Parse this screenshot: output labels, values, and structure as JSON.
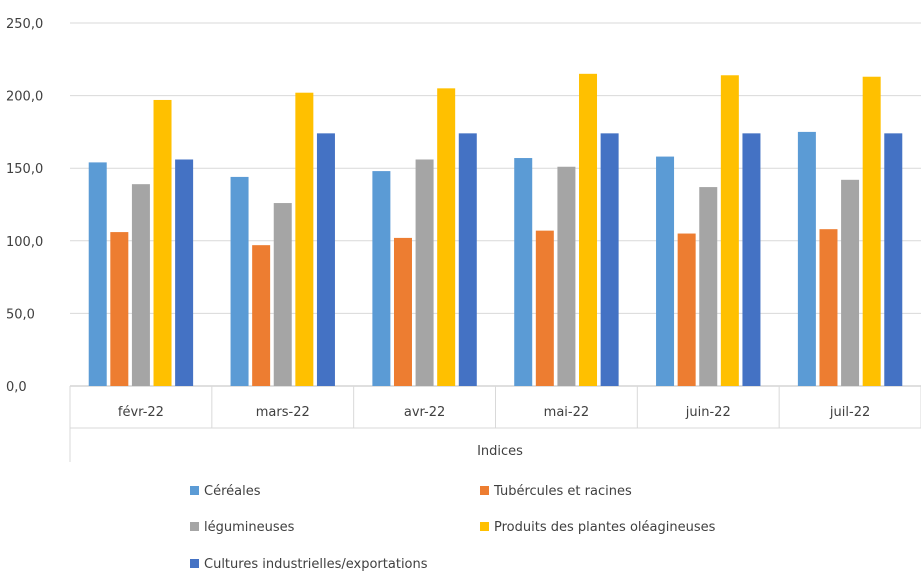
{
  "chart_data": {
    "type": "bar",
    "title": "",
    "xlabel": "Indices",
    "ylabel": "",
    "ylim": [
      0,
      250
    ],
    "yticks": [
      "0,0",
      "50,0",
      "100,0",
      "150,0",
      "200,0",
      "250,0"
    ],
    "grid": true,
    "legend_position": "bottom",
    "categories": [
      "févr-22",
      "mars-22",
      "avr-22",
      "mai-22",
      "juin-22",
      "juil-22"
    ],
    "series": [
      {
        "name": "Céréales",
        "color": "#5B9BD5",
        "values": [
          154,
          144,
          148,
          157,
          158,
          175
        ]
      },
      {
        "name": "Tubércules et racines",
        "color": "#ED7D31",
        "values": [
          106,
          97,
          102,
          107,
          105,
          108
        ]
      },
      {
        "name": "légumineuses",
        "color": "#A5A5A5",
        "values": [
          139,
          126,
          156,
          151,
          137,
          142
        ]
      },
      {
        "name": "Produits des plantes oléagineuses",
        "color": "#FFC000",
        "values": [
          197,
          202,
          205,
          215,
          214,
          213
        ]
      },
      {
        "name": "Cultures industrielles/exportations",
        "color": "#4472C4",
        "values": [
          156,
          174,
          174,
          174,
          174,
          174
        ]
      }
    ]
  }
}
